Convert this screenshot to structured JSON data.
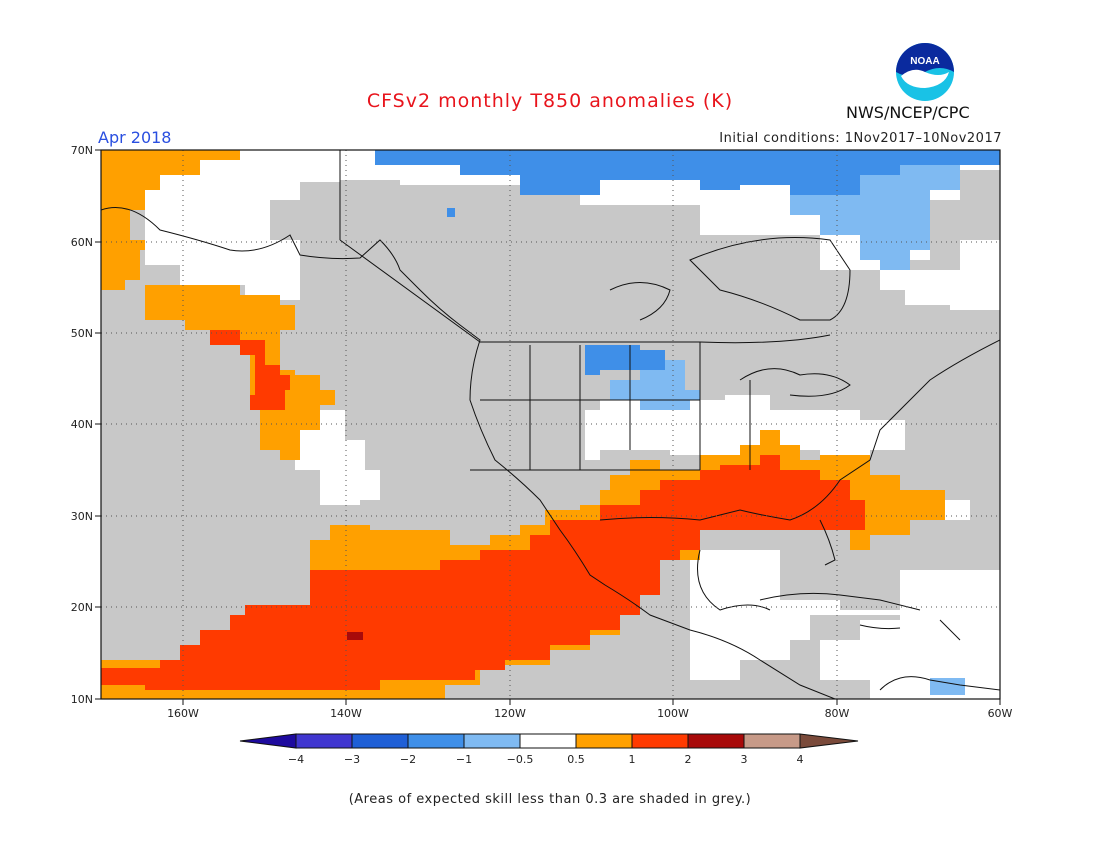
{
  "title": "CFSv2 monthly T850 anomalies (K)",
  "period": "Apr 2018",
  "initial_conditions": "Initial conditions: 1Nov2017–10Nov2017",
  "agency": "NWS/NCEP/CPC",
  "logo_text": "NOAA",
  "note": "(Areas of expected skill less than 0.3 are shaded in grey.)",
  "map": {
    "lon_range": [
      -170,
      -60
    ],
    "lat_range": [
      10,
      70
    ],
    "lon_labels": [
      "160W",
      "140W",
      "120W",
      "100W",
      "80W",
      "60W"
    ],
    "lat_labels": [
      "10N",
      "20N",
      "30N",
      "40N",
      "50N",
      "60N",
      "70N"
    ],
    "grid": "dotted"
  },
  "colorbar": {
    "tick_labels": [
      "−4",
      "−3",
      "−2",
      "−1",
      "−0.5",
      "0.5",
      "1",
      "2",
      "3",
      "4"
    ],
    "colors": [
      "#1e0a9e",
      "#4036cf",
      "#1f5fd6",
      "#3f8fe8",
      "#7fbaf2",
      "#ffffff",
      "#ffa000",
      "#ff3a00",
      "#a80a0a",
      "#c79a88",
      "#7a4a3a"
    ],
    "grey_color": "#c8c8c8"
  }
}
